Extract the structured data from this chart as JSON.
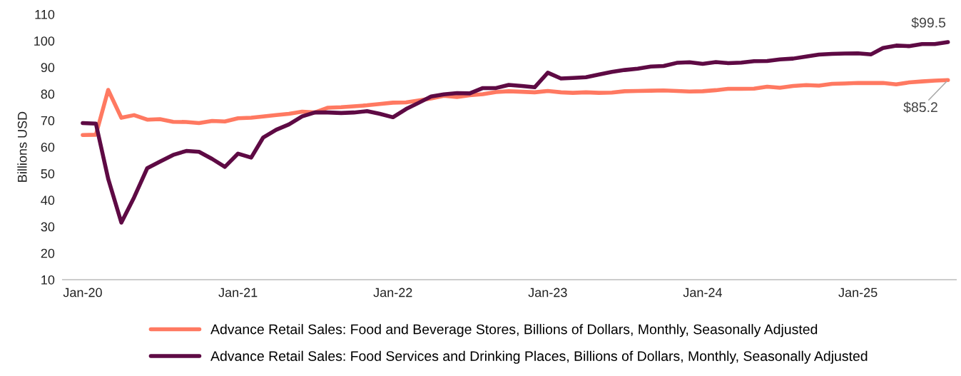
{
  "chart_data": {
    "type": "line",
    "ylabel": "Billions USD",
    "x": [
      "2020-01",
      "2020-02",
      "2020-03",
      "2020-04",
      "2020-05",
      "2020-06",
      "2020-07",
      "2020-08",
      "2020-09",
      "2020-10",
      "2020-11",
      "2020-12",
      "2021-01",
      "2021-02",
      "2021-03",
      "2021-04",
      "2021-05",
      "2021-06",
      "2021-07",
      "2021-08",
      "2021-09",
      "2021-10",
      "2021-11",
      "2021-12",
      "2022-01",
      "2022-02",
      "2022-03",
      "2022-04",
      "2022-05",
      "2022-06",
      "2022-07",
      "2022-08",
      "2022-09",
      "2022-10",
      "2022-11",
      "2022-12",
      "2023-01",
      "2023-02",
      "2023-03",
      "2023-04",
      "2023-05",
      "2023-06",
      "2023-07",
      "2023-08",
      "2023-09",
      "2023-10",
      "2023-11",
      "2023-12",
      "2024-01",
      "2024-02",
      "2024-03",
      "2024-04",
      "2024-05",
      "2024-06",
      "2024-07",
      "2024-08",
      "2024-09",
      "2024-10",
      "2024-11",
      "2024-12",
      "2025-01",
      "2025-02",
      "2025-03",
      "2025-04",
      "2025-05",
      "2025-06",
      "2025-07",
      "2025-08"
    ],
    "series": [
      {
        "name": "Advance Retail Sales: Food and Beverage Stores, Billions of Dollars, Monthly, Seasonally Adjusted",
        "color": "#ff7961",
        "values": [
          64.5,
          64.6,
          81.5,
          71,
          72,
          70.3,
          70.5,
          69.5,
          69.4,
          69,
          69.8,
          69.6,
          70.8,
          71,
          71.5,
          72,
          72.5,
          73.3,
          73,
          74.8,
          75,
          75.3,
          75.7,
          76.2,
          76.7,
          76.8,
          77.5,
          78.3,
          79.3,
          78.8,
          79.5,
          79.9,
          80.7,
          81,
          80.8,
          80.6,
          81.1,
          80.6,
          80.4,
          80.6,
          80.4,
          80.5,
          81,
          81.1,
          81.2,
          81.3,
          81.1,
          80.9,
          81,
          81.4,
          81.9,
          81.9,
          82,
          82.7,
          82.3,
          83,
          83.3,
          83.1,
          83.8,
          83.9,
          84.1,
          84.1,
          84.1,
          83.6,
          84.3,
          84.7,
          85,
          85.2
        ]
      },
      {
        "name": "Advance Retail Sales: Food Services and Drinking Places, Billions of Dollars, Monthly, Seasonally Adjusted",
        "color": "#5e0a44",
        "values": [
          69,
          68.8,
          48,
          31.5,
          41,
          52,
          54.5,
          57,
          58.5,
          58.2,
          55.5,
          52.5,
          57.5,
          56,
          63.5,
          66.5,
          68.5,
          71.5,
          73,
          73,
          72.8,
          73,
          73.5,
          72.5,
          71.2,
          74.3,
          76.5,
          79,
          79.8,
          80.3,
          80.2,
          82.2,
          82.2,
          83.4,
          83,
          82.5,
          88,
          85.8,
          86,
          86.3,
          87.3,
          88.3,
          89,
          89.5,
          90.3,
          90.5,
          91.7,
          91.9,
          91.3,
          92,
          91.6,
          91.8,
          92.3,
          92.4,
          93,
          93.3,
          94.1,
          94.8,
          95.1,
          95.2,
          95.3,
          94.9,
          97.3,
          98.2,
          98,
          98.8,
          98.8,
          99.5
        ]
      }
    ],
    "xlim": [
      "2019-11-15",
      "2025-08-20"
    ],
    "xticks": [
      {
        "value": "2020-01",
        "label": "Jan-20"
      },
      {
        "value": "2021-01",
        "label": "Jan-21"
      },
      {
        "value": "2022-01",
        "label": "Jan-22"
      },
      {
        "value": "2023-01",
        "label": "Jan-23"
      },
      {
        "value": "2024-01",
        "label": "Jan-24"
      },
      {
        "value": "2025-01",
        "label": "Jan-25"
      }
    ],
    "ylim": [
      10,
      110
    ],
    "yticks": [
      10,
      20,
      30,
      40,
      50,
      60,
      70,
      80,
      90,
      100,
      110
    ],
    "annotations": [
      {
        "text": "$99.5",
        "x": "2025-08",
        "y": 99.5
      },
      {
        "text": "$85.2",
        "x": "2025-08",
        "y": 85.2
      }
    ],
    "grid": false,
    "legend": "bottom",
    "marker": "none",
    "line_style": "solid"
  }
}
